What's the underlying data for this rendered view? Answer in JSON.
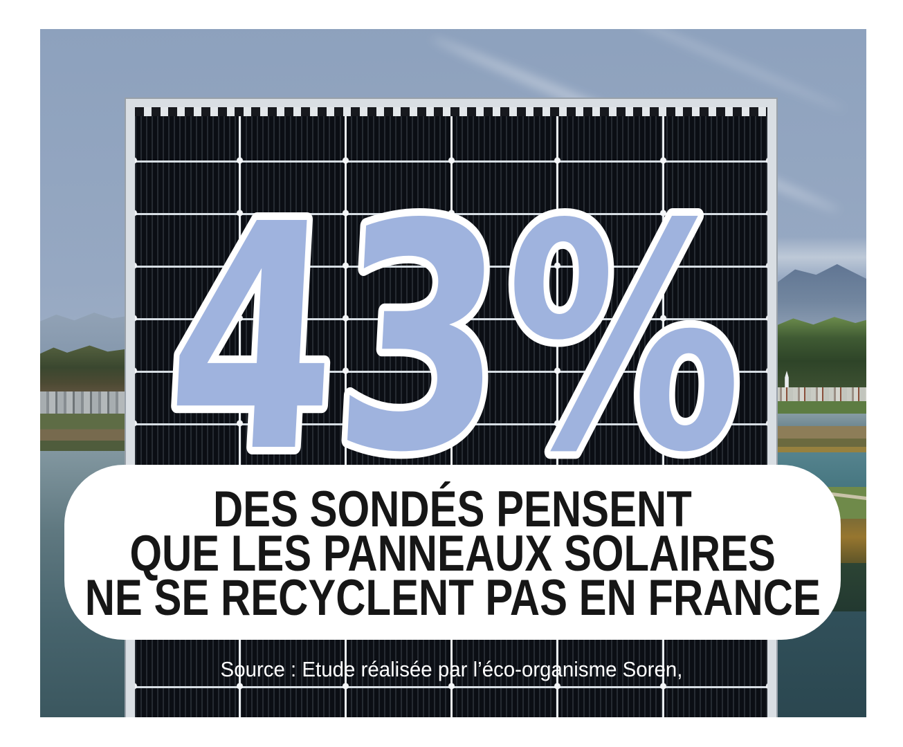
{
  "stat": {
    "value": "43%",
    "fill_color": "#9fb3de",
    "outline_color": "#ffffff"
  },
  "card": {
    "background_color": "#ffffff",
    "text_color": "#161616",
    "lines": [
      "DES SONDÉS PENSENT",
      "QUE LES PANNEAUX SOLAIRES",
      "NE SE RECYCLENT PAS EN FRANCE"
    ]
  },
  "source": {
    "text": "Source : Etude réalisée par l’éco-organisme Soren,",
    "color": "#ffffff"
  },
  "scene": {
    "name": "solar-panel-lake-mountains-photo",
    "sky_color": "#96a8c2",
    "panel_cell_color": "#0b0e14",
    "panel_frame_color": "#d9dee3",
    "water_color": "#3b575f"
  }
}
